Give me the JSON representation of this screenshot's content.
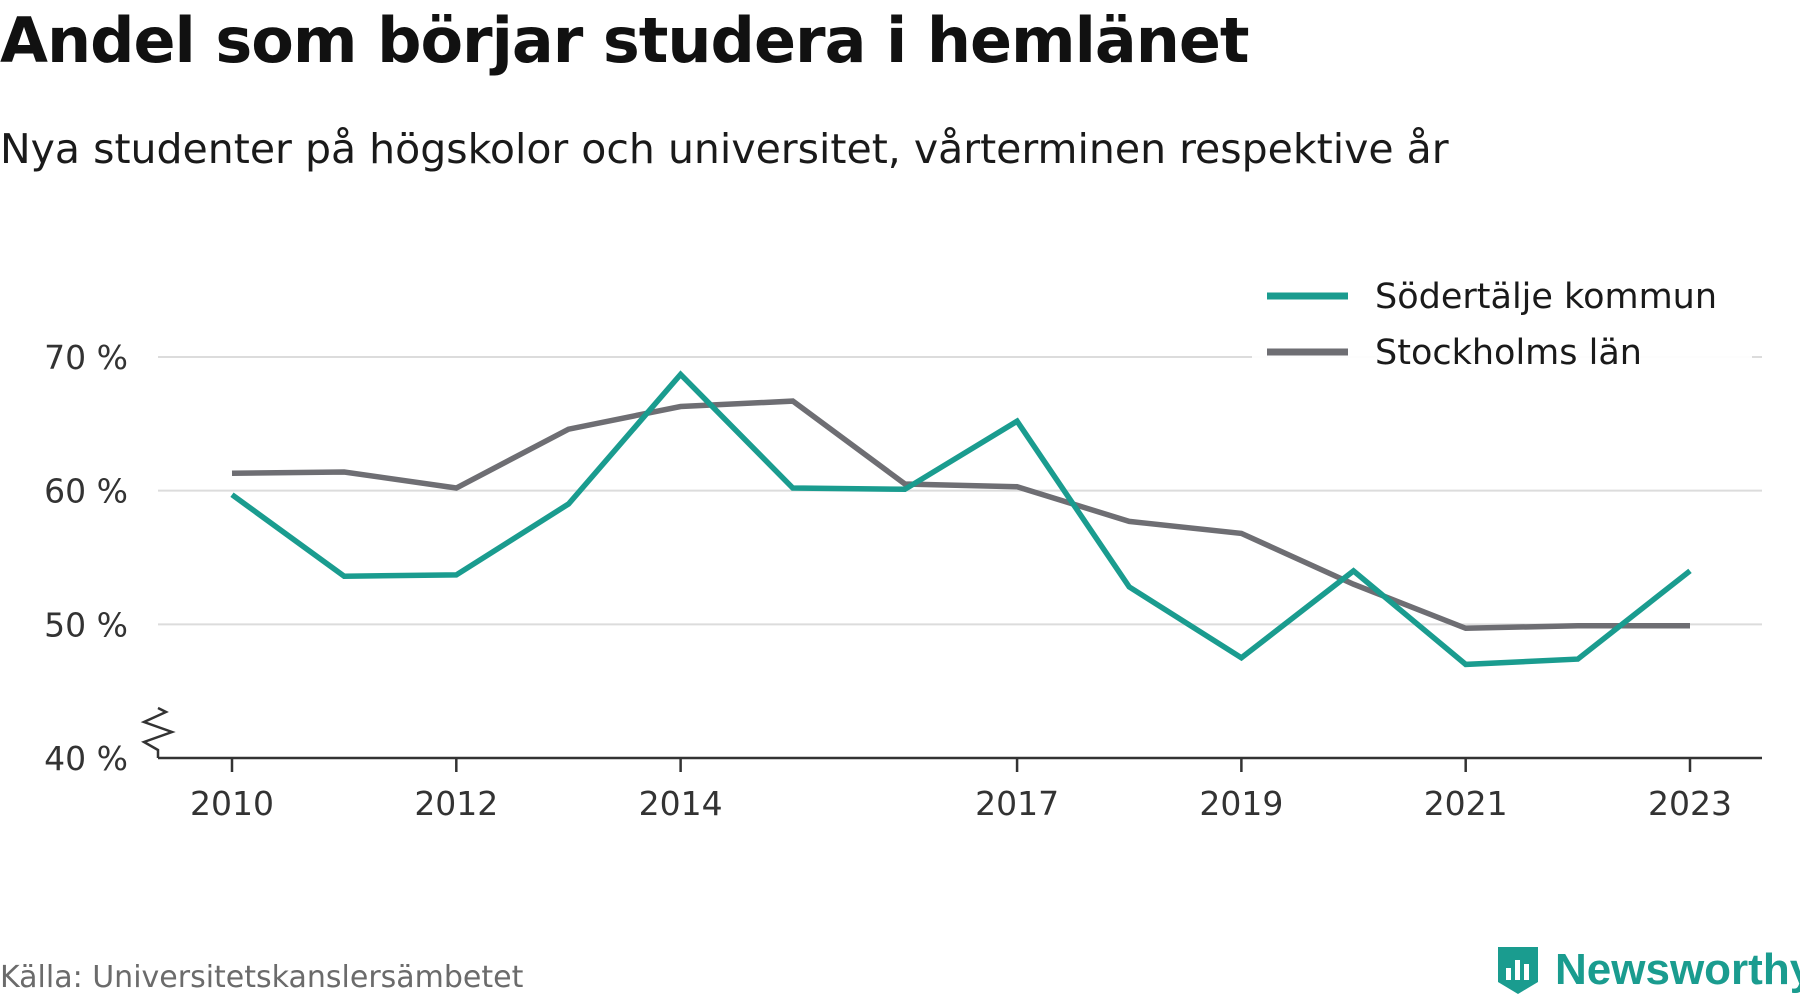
{
  "header": {
    "title": "Andel som börjar studera i hemlänet",
    "subtitle": "Nya studenter på högskolor och universitet, vårterminen respektive år"
  },
  "footer": {
    "source": "Källa: Universitetskanslersämbetet",
    "brand": "Newsworthy",
    "brand_icon": "bar-chart-shield-icon",
    "brand_color": "#1a9c8f"
  },
  "chart_data": {
    "type": "line",
    "title": "Andel som börjar studera i hemlänet",
    "subtitle": "Nya studenter på högskolor och universitet, vårterminen respektive år",
    "xlabel": "",
    "ylabel": "",
    "x": [
      2010,
      2011,
      2012,
      2013,
      2014,
      2015,
      2016,
      2017,
      2018,
      2019,
      2020,
      2021,
      2022,
      2023
    ],
    "x_tick_values": [
      2010,
      2012,
      2014,
      2017,
      2019,
      2021,
      2023
    ],
    "x_tick_labels": [
      "2010",
      "2012",
      "2014",
      "2017",
      "2019",
      "2021",
      "2023"
    ],
    "y_tick_values": [
      40,
      50,
      60,
      70
    ],
    "y_tick_labels": [
      "40 %",
      "50 %",
      "60 %",
      "70 %"
    ],
    "ylim": [
      40,
      70
    ],
    "y_axis_break": true,
    "grid": "horizontal",
    "legend_position": "top-right",
    "series": [
      {
        "name": "Södertälje kommun",
        "color": "#1a9c8f",
        "values": [
          59.7,
          53.6,
          53.7,
          59.0,
          68.7,
          60.2,
          60.1,
          65.2,
          52.8,
          47.5,
          54.0,
          47.0,
          47.4,
          54.0
        ]
      },
      {
        "name": "Stockholms län",
        "color": "#6e6e73",
        "values": [
          61.3,
          61.4,
          60.2,
          64.6,
          66.3,
          66.7,
          60.5,
          60.3,
          57.7,
          56.8,
          53.0,
          49.7,
          49.9,
          49.9
        ]
      }
    ]
  }
}
